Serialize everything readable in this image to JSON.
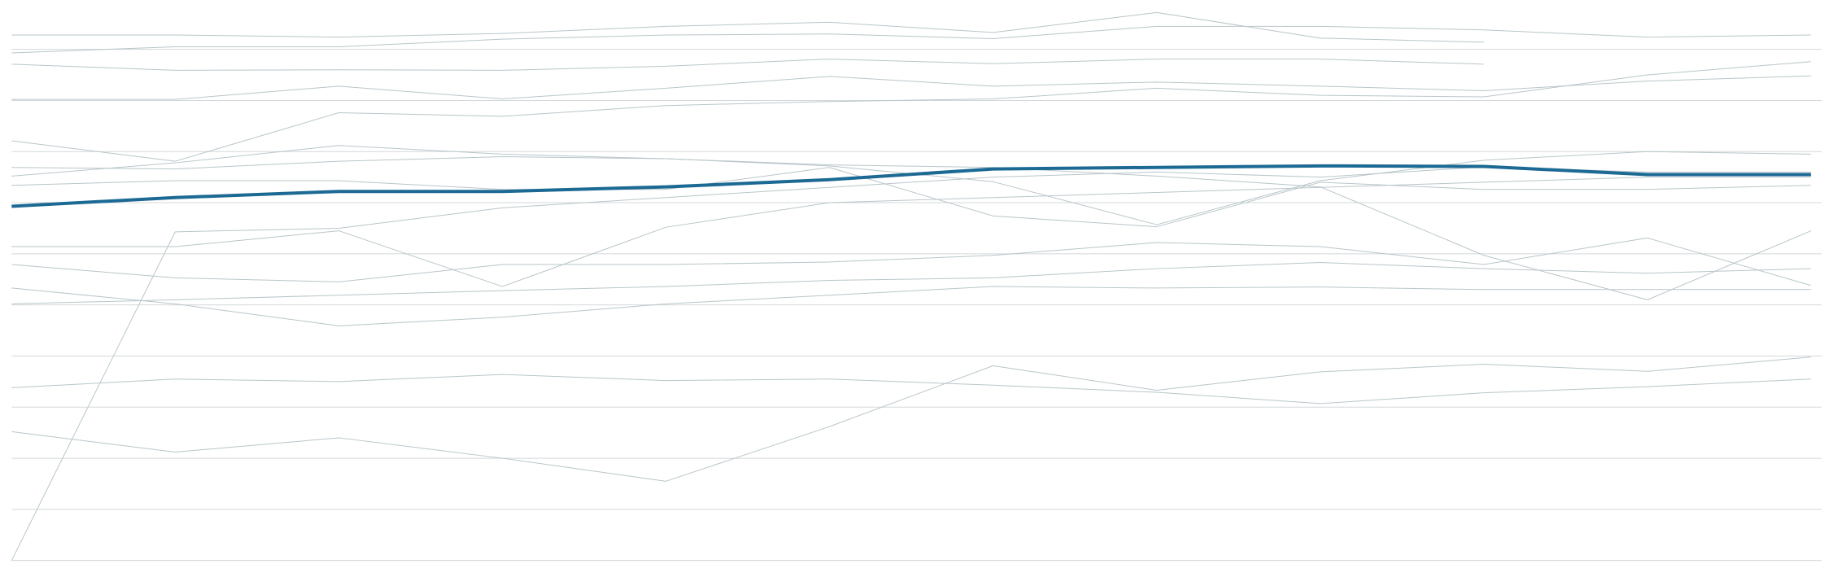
{
  "chart_data": {
    "type": "line",
    "categories": [
      null,
      null,
      null,
      null,
      null,
      null,
      null,
      null,
      null,
      null,
      null,
      null
    ],
    "ylim": [
      0,
      11
    ],
    "yticks": [
      0,
      1,
      2,
      3,
      4,
      5,
      6,
      7,
      8,
      9,
      10
    ],
    "grid": true,
    "series": [
      {
        "color": "#b9c6ca",
        "values": [
          0,
          6.43,
          6.5,
          6.9,
          7.1,
          7.3,
          7.5,
          7.6,
          7.5,
          7.7,
          7.6,
          7.6
        ]
      },
      {
        "color": "#b9c6ca",
        "values": [
          2.52,
          2.12,
          2.4,
          2.0,
          1.55,
          2.62,
          3.81,
          3.33,
          3.69,
          3.84,
          3.7,
          3.98
        ]
      },
      {
        "color": "#b9c6ca",
        "values": [
          3.38,
          3.55,
          3.5,
          3.64,
          3.52,
          3.55,
          3.43,
          3.29,
          3.07,
          3.28,
          3.4,
          3.55
        ]
      },
      {
        "color": "#b9c6ca",
        "values": [
          5.33,
          5.02,
          4.59,
          4.76,
          5.02,
          5.19,
          5.36,
          5.33,
          5.35,
          5.3,
          5.3,
          5.3
        ]
      },
      {
        "color": "#b9c6ca",
        "values": [
          10.28,
          10.28,
          10.24,
          10.31,
          10.45,
          10.53,
          10.33,
          10.72,
          10.22,
          10.14,
          null,
          null
        ]
      },
      {
        "color": "#b9c6ca",
        "values": [
          9.93,
          10.05,
          10.05,
          10.2,
          10.28,
          10.3,
          10.21,
          10.45,
          10.45,
          10.38,
          10.24,
          10.28
        ]
      },
      {
        "color": "#b9c6ca",
        "values": [
          9.71,
          9.59,
          9.6,
          9.59,
          9.67,
          9.81,
          9.72,
          9.81,
          9.81,
          9.71,
          null,
          null
        ]
      },
      {
        "color": "#b9c6ca",
        "values": [
          9.02,
          9.02,
          9.28,
          9.03,
          9.24,
          9.47,
          9.28,
          9.36,
          9.28,
          9.19,
          9.38,
          9.48
        ]
      },
      {
        "color": "#b9c6ca",
        "values": [
          8.21,
          7.81,
          8.76,
          8.69,
          8.9,
          8.98,
          9.03,
          9.24,
          9.1,
          9.07,
          9.5,
          9.76
        ]
      },
      {
        "color": "#b9c6ca",
        "values": [
          6.14,
          6.14,
          6.45,
          5.36,
          6.52,
          7.0,
          7.1,
          7.2,
          7.3,
          7.4,
          7.5,
          7.5
        ]
      },
      {
        "color": "#b9c6ca",
        "values": [
          7.69,
          7.66,
          7.81,
          7.9,
          7.86,
          7.74,
          7.69,
          7.52,
          7.31,
          5.97,
          5.1,
          6.45
        ]
      },
      {
        "color": "#b9c6ca",
        "values": [
          7.52,
          7.78,
          8.12,
          7.95,
          7.86,
          7.72,
          7.41,
          6.57,
          7.43,
          7.83,
          8.0,
          7.95
        ]
      },
      {
        "color": "#b9c6ca",
        "values": [
          7.34,
          7.43,
          7.43,
          7.26,
          7.26,
          7.69,
          6.74,
          6.53,
          7.4,
          7.26,
          7.26,
          7.34
        ]
      },
      {
        "color": "#b9c6ca",
        "values": [
          5.79,
          5.53,
          5.45,
          5.79,
          5.79,
          5.84,
          5.97,
          6.22,
          6.14,
          5.79,
          6.31,
          5.38
        ]
      },
      {
        "color": "#b9c6ca",
        "values": [
          5.02,
          5.1,
          5.19,
          5.28,
          5.36,
          5.48,
          5.53,
          5.71,
          5.83,
          5.71,
          5.62,
          5.71
        ]
      },
      {
        "color": "#1c6a94",
        "values": [
          6.93,
          7.1,
          7.22,
          7.22,
          7.31,
          7.45,
          7.66,
          7.69,
          7.72,
          7.71,
          7.55,
          7.55
        ]
      }
    ]
  }
}
